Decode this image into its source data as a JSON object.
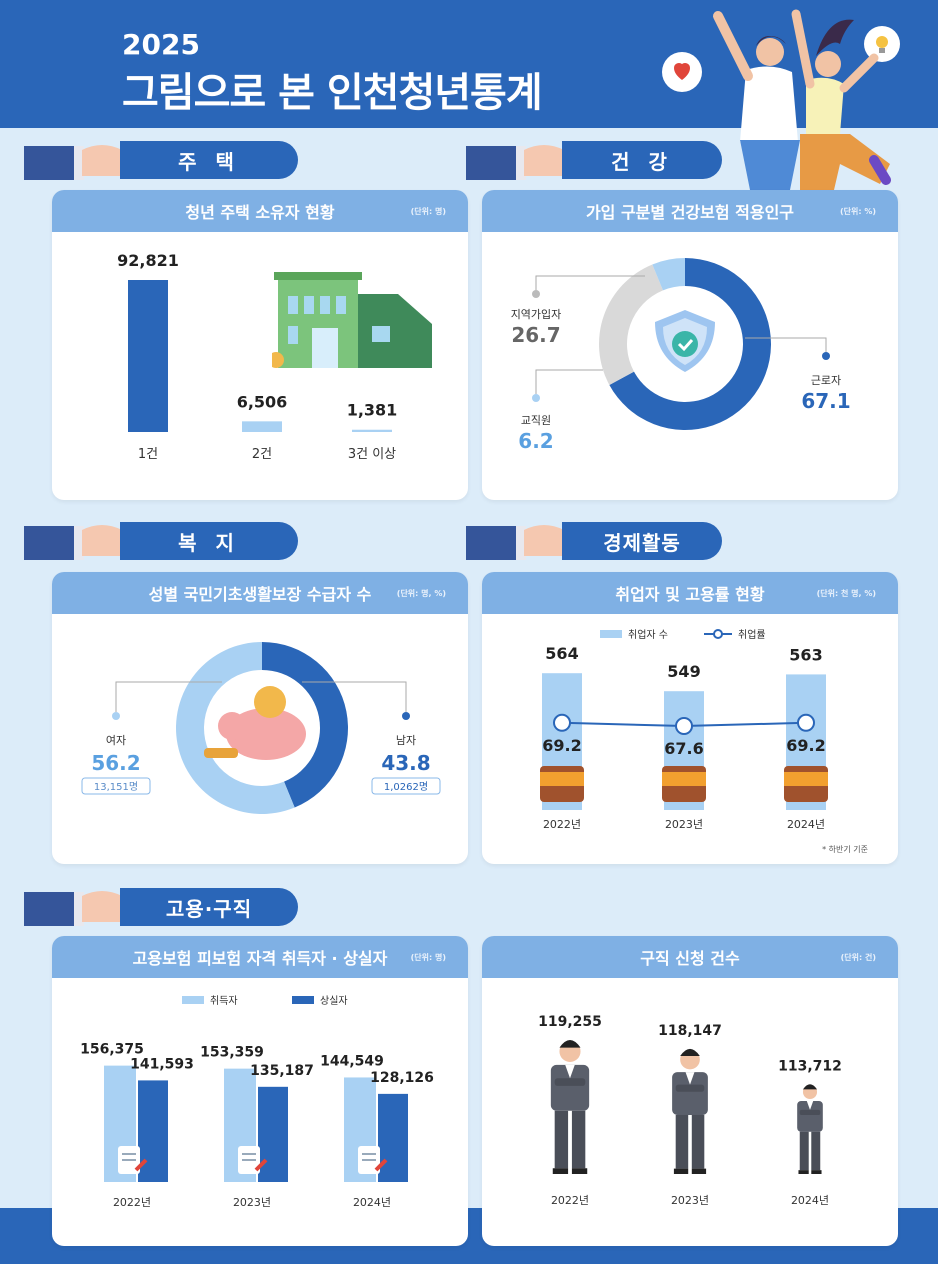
{
  "header": {
    "year": "2025",
    "title": "그림으로 본 인천청년통계"
  },
  "sections": {
    "housing": "주 택",
    "health": "건 강",
    "welfare": "복 지",
    "economy": "경제활동",
    "employment": "고용·구직"
  },
  "colors": {
    "dark_blue": "#2a66b8",
    "light_blue": "#a9d1f3",
    "gray": "#d9d9d9",
    "header_blue": "#7fb0e4"
  },
  "housing_panel": {
    "title": "청년 주택 소유자 현황",
    "unit": "(단위: 명)"
  },
  "health_panel": {
    "title": "가입 구분별 건강보험 적용인구",
    "unit": "(단위: %)"
  },
  "welfare_panel": {
    "title": "성별 국민기초생활보장 수급자 수",
    "unit": "(단위: 명, %)"
  },
  "economy_panel": {
    "title": "취업자 및 고용률 현황",
    "unit": "(단위: 천 명, %)",
    "legend_bar": "취업자 수",
    "legend_line": "취업률",
    "note": "* 하반기 기준"
  },
  "insurance_panel": {
    "title": "고용보험 피보험 자격 취득자 · 상실자",
    "unit": "(단위: 명)",
    "legend_a": "취득자",
    "legend_b": "상실자"
  },
  "jobseek_panel": {
    "title": "구직 신청 건수",
    "unit": "(단위: 건)"
  },
  "chart_data": [
    {
      "type": "bar",
      "categories": [
        "1건",
        "2건",
        "3건 이상"
      ],
      "values": [
        92821,
        6506,
        1381
      ],
      "labels": [
        "92,821",
        "6,506",
        "1,381"
      ]
    },
    {
      "type": "pie",
      "categories": [
        "근로자",
        "지역가입자",
        "교직원"
      ],
      "values": [
        67.1,
        26.7,
        6.2
      ],
      "labels": [
        "67.1",
        "26.7",
        "6.2"
      ]
    },
    {
      "type": "pie",
      "categories": [
        "여자",
        "남자"
      ],
      "values": [
        56.2,
        43.8
      ],
      "labels": [
        "56.2",
        "43.8"
      ],
      "counts": [
        "13,151명",
        "1,0262명"
      ]
    },
    {
      "type": "bar",
      "categories": [
        "2022년",
        "2023년",
        "2024년"
      ],
      "series": [
        {
          "name": "취업자 수",
          "values": [
            564,
            549,
            563
          ],
          "labels": [
            "564",
            "549",
            "563"
          ]
        },
        {
          "name": "취업률",
          "values": [
            69.2,
            67.6,
            69.2
          ],
          "labels": [
            "69.2",
            "67.6",
            "69.2"
          ]
        }
      ]
    },
    {
      "type": "bar",
      "categories": [
        "2022년",
        "2023년",
        "2024년"
      ],
      "series": [
        {
          "name": "취득자",
          "values": [
            156375,
            153359,
            144549
          ],
          "labels": [
            "156,375",
            "153,359",
            "144,549"
          ]
        },
        {
          "name": "상실자",
          "values": [
            141593,
            135187,
            128126
          ],
          "labels": [
            "141,593",
            "135,187",
            "128,126"
          ]
        }
      ]
    },
    {
      "type": "bar",
      "categories": [
        "2022년",
        "2023년",
        "2024년"
      ],
      "values": [
        119255,
        118147,
        113712
      ],
      "labels": [
        "119,255",
        "118,147",
        "113,712"
      ]
    }
  ]
}
